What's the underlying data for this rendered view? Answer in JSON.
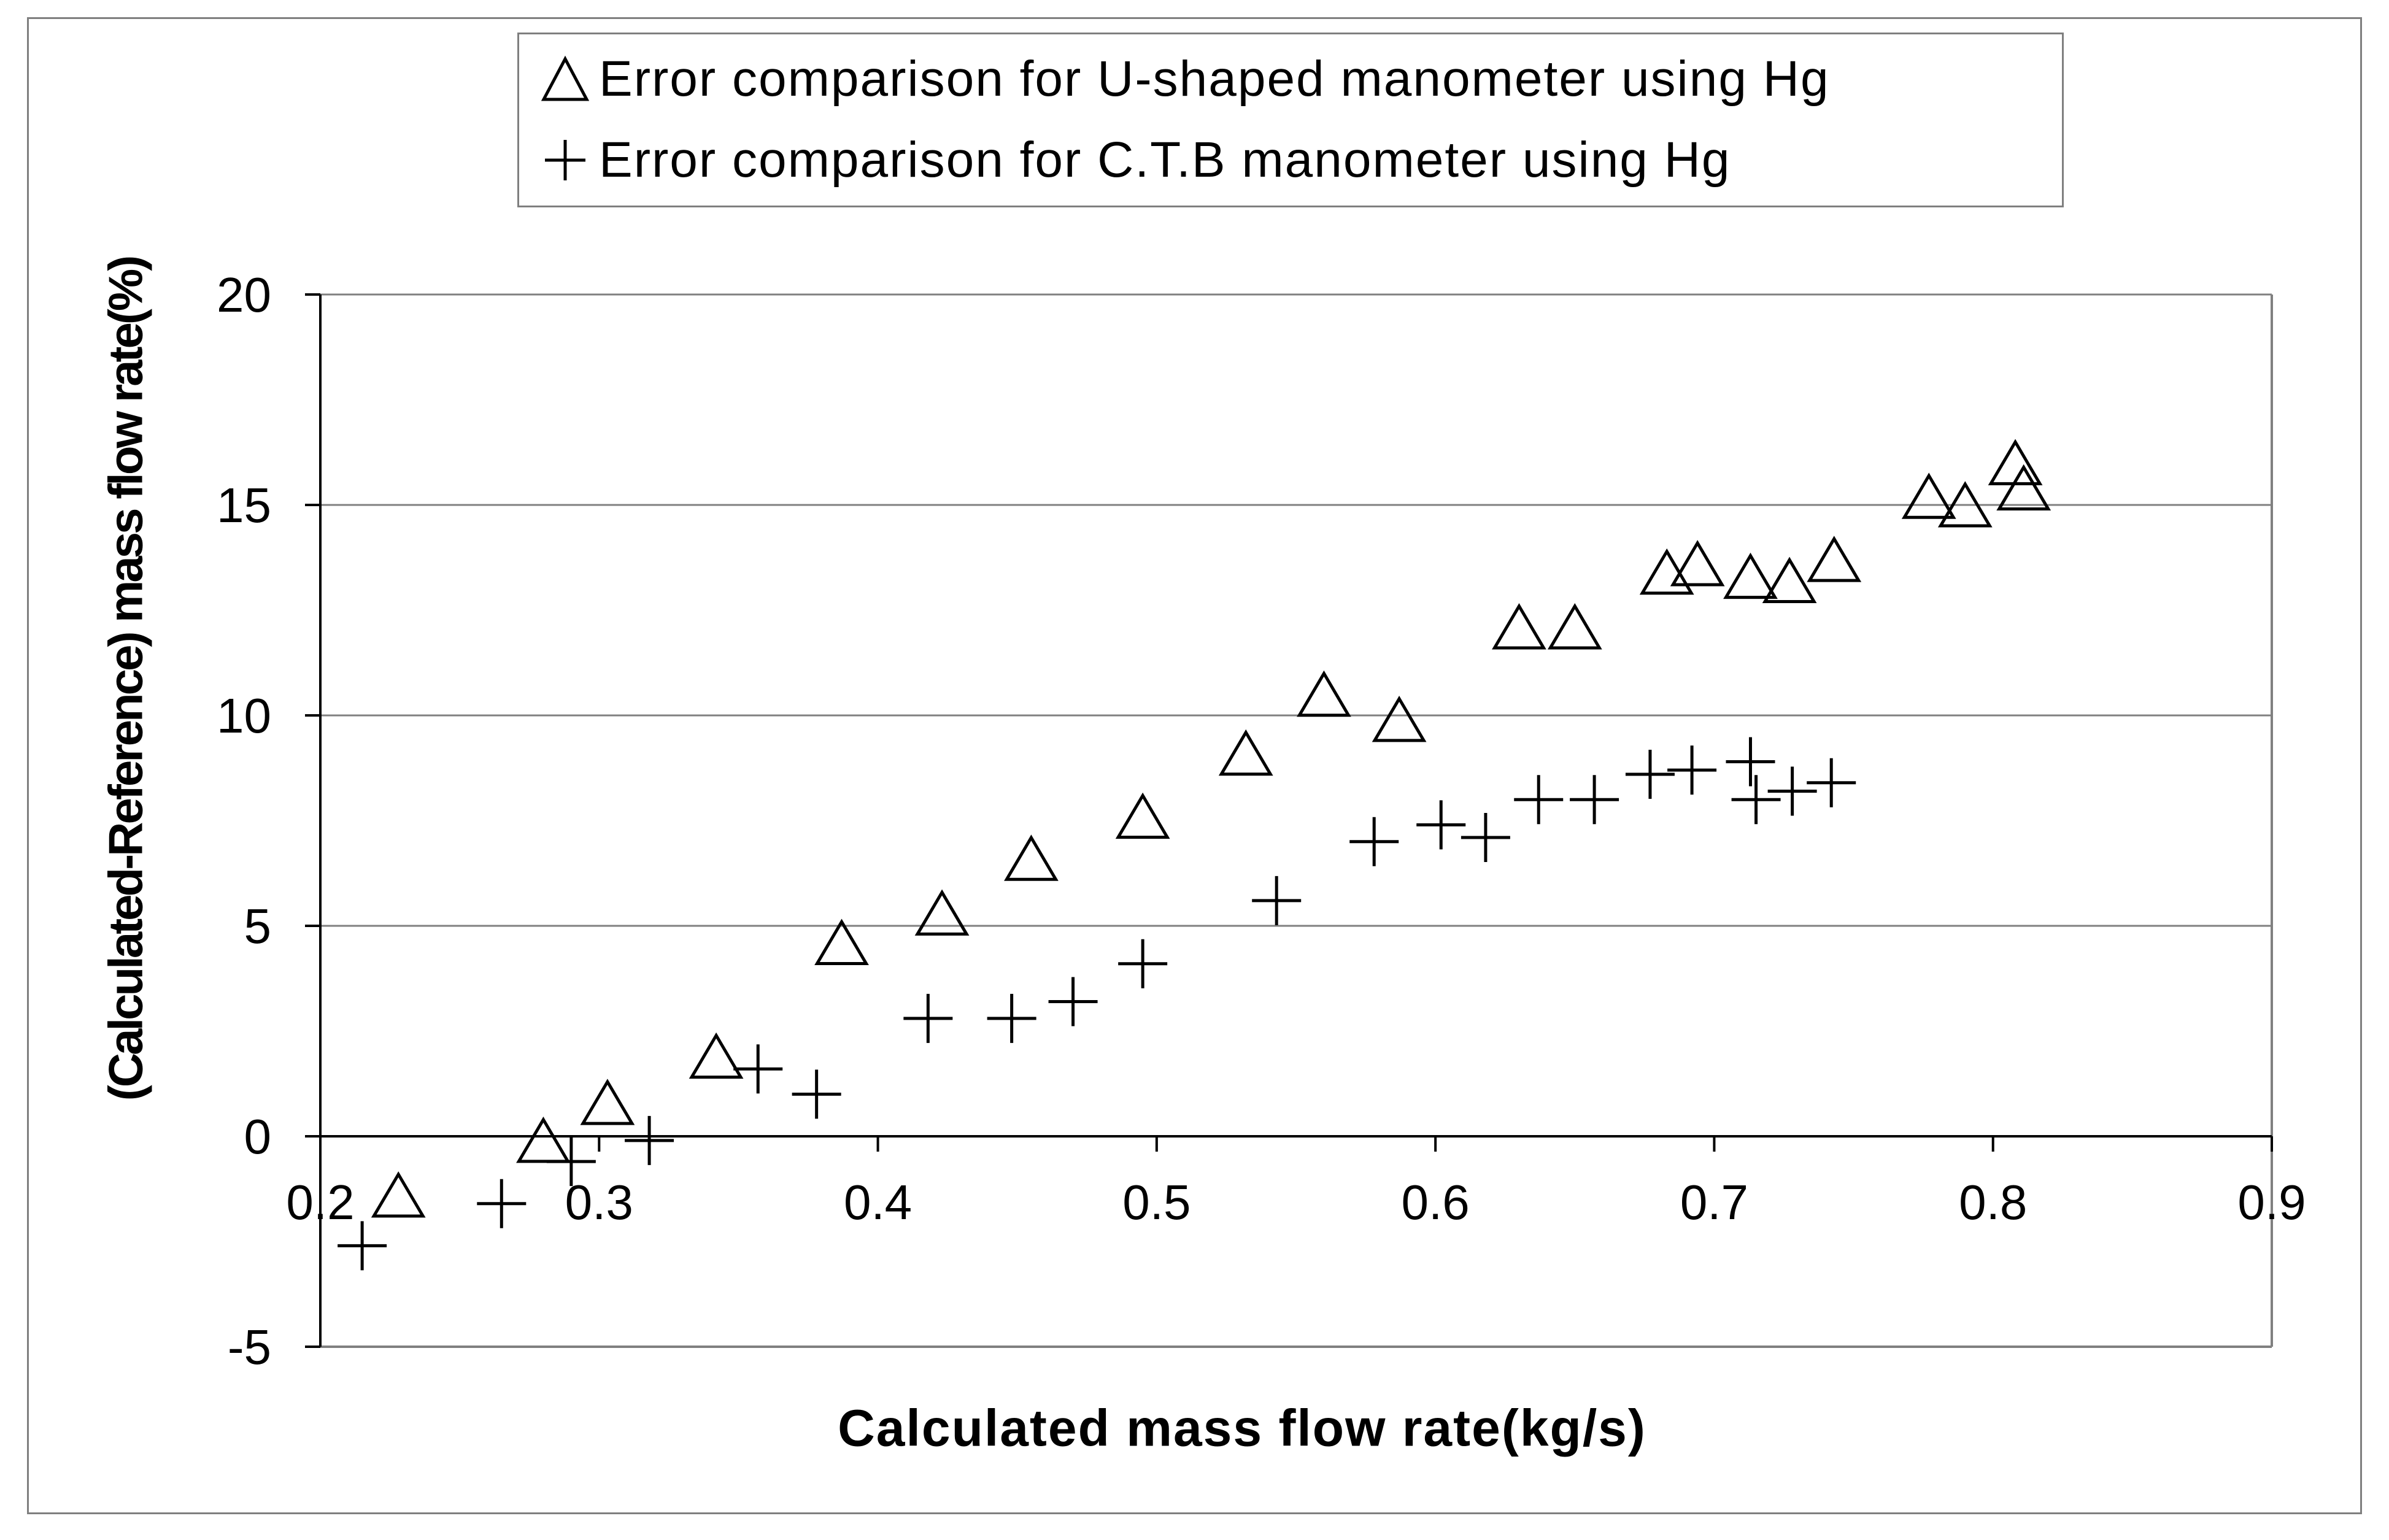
{
  "chart_data": {
    "type": "scatter",
    "title": "",
    "xlabel": "Calculated mass flow rate(kg/s)",
    "ylabel": "(Calculated-Reference) mass flow rate(%)",
    "xlim": [
      0.2,
      0.9
    ],
    "ylim": [
      -5,
      20
    ],
    "xticks": [
      "0.2",
      "0.3",
      "0.4",
      "0.5",
      "0.6",
      "0.7",
      "0.8",
      "0.9"
    ],
    "yticks": [
      "-5",
      "0",
      "5",
      "10",
      "15",
      "20"
    ],
    "grid": "horizontal",
    "legend_position": "top",
    "series": [
      {
        "name": "Error comparison for U-shaped manometer using Hg",
        "marker": "triangle",
        "points": [
          [
            0.228,
            -1.4
          ],
          [
            0.28,
            -0.1
          ],
          [
            0.303,
            0.8
          ],
          [
            0.342,
            1.9
          ],
          [
            0.387,
            4.6
          ],
          [
            0.423,
            5.3
          ],
          [
            0.455,
            6.6
          ],
          [
            0.495,
            7.6
          ],
          [
            0.532,
            9.1
          ],
          [
            0.56,
            10.5
          ],
          [
            0.587,
            9.9
          ],
          [
            0.63,
            12.1
          ],
          [
            0.65,
            12.1
          ],
          [
            0.683,
            13.4
          ],
          [
            0.694,
            13.6
          ],
          [
            0.713,
            13.3
          ],
          [
            0.727,
            13.2
          ],
          [
            0.743,
            13.7
          ],
          [
            0.777,
            15.2
          ],
          [
            0.79,
            15.0
          ],
          [
            0.808,
            16.0
          ],
          [
            0.811,
            15.4
          ]
        ]
      },
      {
        "name": "Error comparison for C.T.B manometer using Hg",
        "marker": "cross",
        "points": [
          [
            0.215,
            -2.6
          ],
          [
            0.265,
            -1.6
          ],
          [
            0.29,
            -0.6
          ],
          [
            0.318,
            -0.1
          ],
          [
            0.357,
            1.6
          ],
          [
            0.378,
            1.0
          ],
          [
            0.418,
            2.8
          ],
          [
            0.448,
            2.8
          ],
          [
            0.47,
            3.2
          ],
          [
            0.495,
            4.1
          ],
          [
            0.543,
            5.6
          ],
          [
            0.578,
            7.0
          ],
          [
            0.602,
            7.4
          ],
          [
            0.618,
            7.1
          ],
          [
            0.637,
            8.0
          ],
          [
            0.657,
            8.0
          ],
          [
            0.677,
            8.6
          ],
          [
            0.692,
            8.7
          ],
          [
            0.713,
            8.9
          ],
          [
            0.715,
            8.0
          ],
          [
            0.728,
            8.2
          ],
          [
            0.742,
            8.4
          ]
        ]
      }
    ]
  },
  "legend": {
    "items": [
      {
        "label": "Error comparison for U-shaped manometer using Hg",
        "icon": "triangle-icon"
      },
      {
        "label": "Error comparison for C.T.B manometer using Hg",
        "icon": "cross-icon"
      }
    ]
  }
}
